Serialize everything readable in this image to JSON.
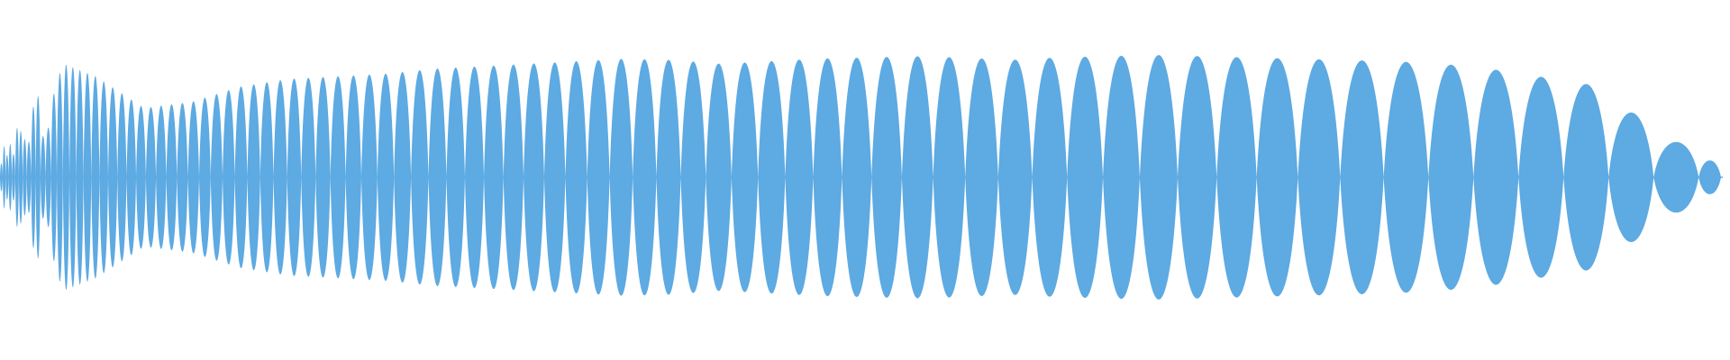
{
  "waveform": {
    "color": "#5eaae2",
    "background": "#ffffff",
    "envelope": [
      0.3,
      0.95,
      0.8,
      0.55,
      0.6,
      0.72,
      0.78,
      0.8,
      0.82,
      0.86,
      0.88,
      0.9,
      0.92,
      0.94,
      0.93,
      0.9,
      0.92,
      0.94,
      0.95,
      0.96,
      0.95,
      0.93,
      0.95,
      0.96,
      0.97,
      0.96,
      0.95,
      0.94,
      0.93,
      0.92,
      0.9,
      0.86,
      0.8,
      0.74,
      0.5,
      0.25,
      0.05
    ]
  }
}
